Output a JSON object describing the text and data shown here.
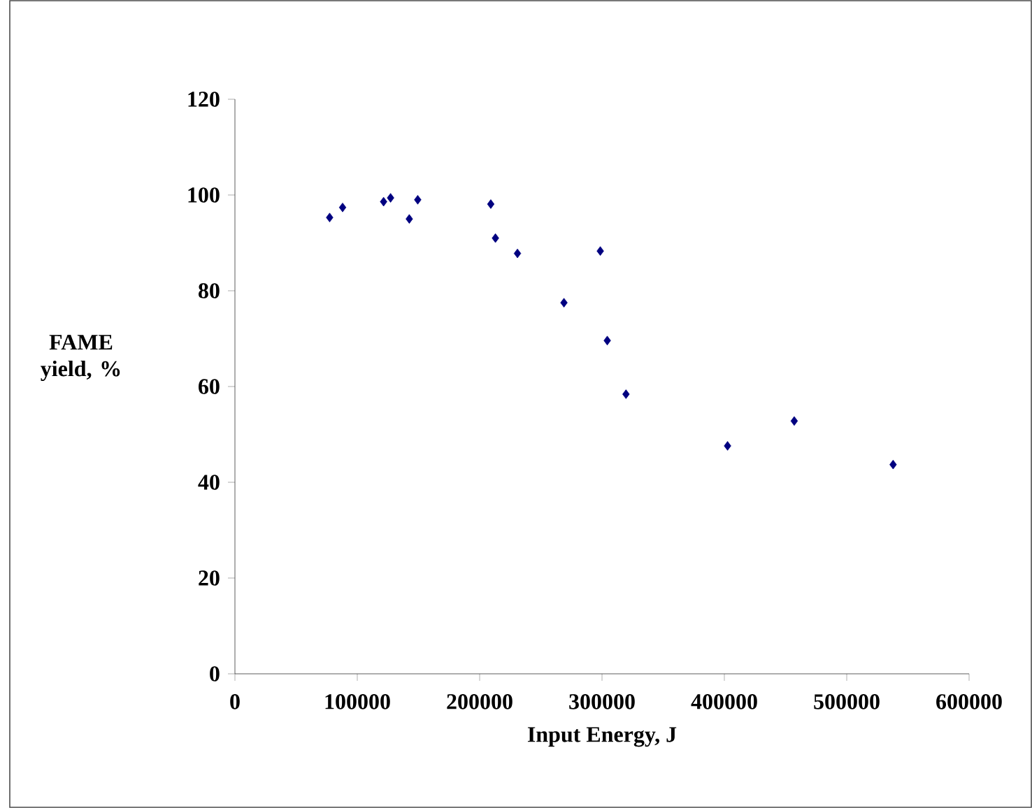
{
  "chart_data": {
    "type": "scatter",
    "xlabel": "Input Energy, J",
    "ylabel": "FAME yield, %",
    "x": [
      77400,
      88000,
      121500,
      127200,
      142500,
      149400,
      209100,
      212900,
      230900,
      268900,
      298600,
      304300,
      319600,
      402600,
      457100,
      537900
    ],
    "values": [
      95.3,
      97.4,
      98.6,
      99.4,
      95.0,
      99.0,
      98.1,
      91.0,
      87.8,
      77.5,
      88.3,
      69.6,
      58.4,
      47.6,
      52.8,
      43.7
    ],
    "color": "#000080",
    "marker": "diamond",
    "xlim": [
      0,
      600000
    ],
    "xticks": [
      0,
      100000,
      200000,
      300000,
      400000,
      500000,
      600000
    ],
    "ylim": [
      0,
      120
    ],
    "yticks": [
      0,
      20,
      40,
      60,
      80,
      100,
      120
    ]
  }
}
